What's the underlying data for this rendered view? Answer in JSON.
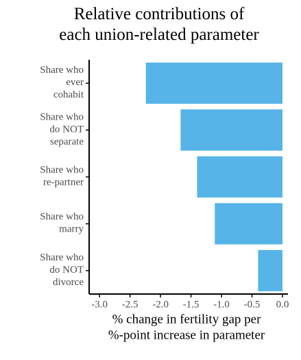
{
  "chart_data": {
    "type": "bar",
    "orientation": "horizontal",
    "title": "Relative contributions of\neach union-related parameter",
    "x_label": "% change in fertility gap per\n%-point increase in parameter",
    "categories": [
      "Share who\never\ncohabit",
      "Share who\ndo NOT\nseparate",
      "Share who\nre-partner",
      "Share who\nmarry",
      "Share who\ndo NOT\ndivorce"
    ],
    "values": [
      -2.24,
      -1.67,
      -1.4,
      -1.11,
      -0.4
    ],
    "color": "#56b4e9",
    "xlim": [
      -3.17,
      0.09
    ],
    "xticks": [
      {
        "value": -3,
        "label": "-3.0"
      },
      {
        "value": -2.5,
        "label": "-2.5"
      },
      {
        "value": -2,
        "label": "-2.0"
      },
      {
        "value": -1.5,
        "label": "-1.5"
      },
      {
        "value": -1,
        "label": "-1.0"
      },
      {
        "value": -0.5,
        "label": "-0.5"
      },
      {
        "value": 0,
        "label": "0.0"
      }
    ],
    "grid": false
  }
}
